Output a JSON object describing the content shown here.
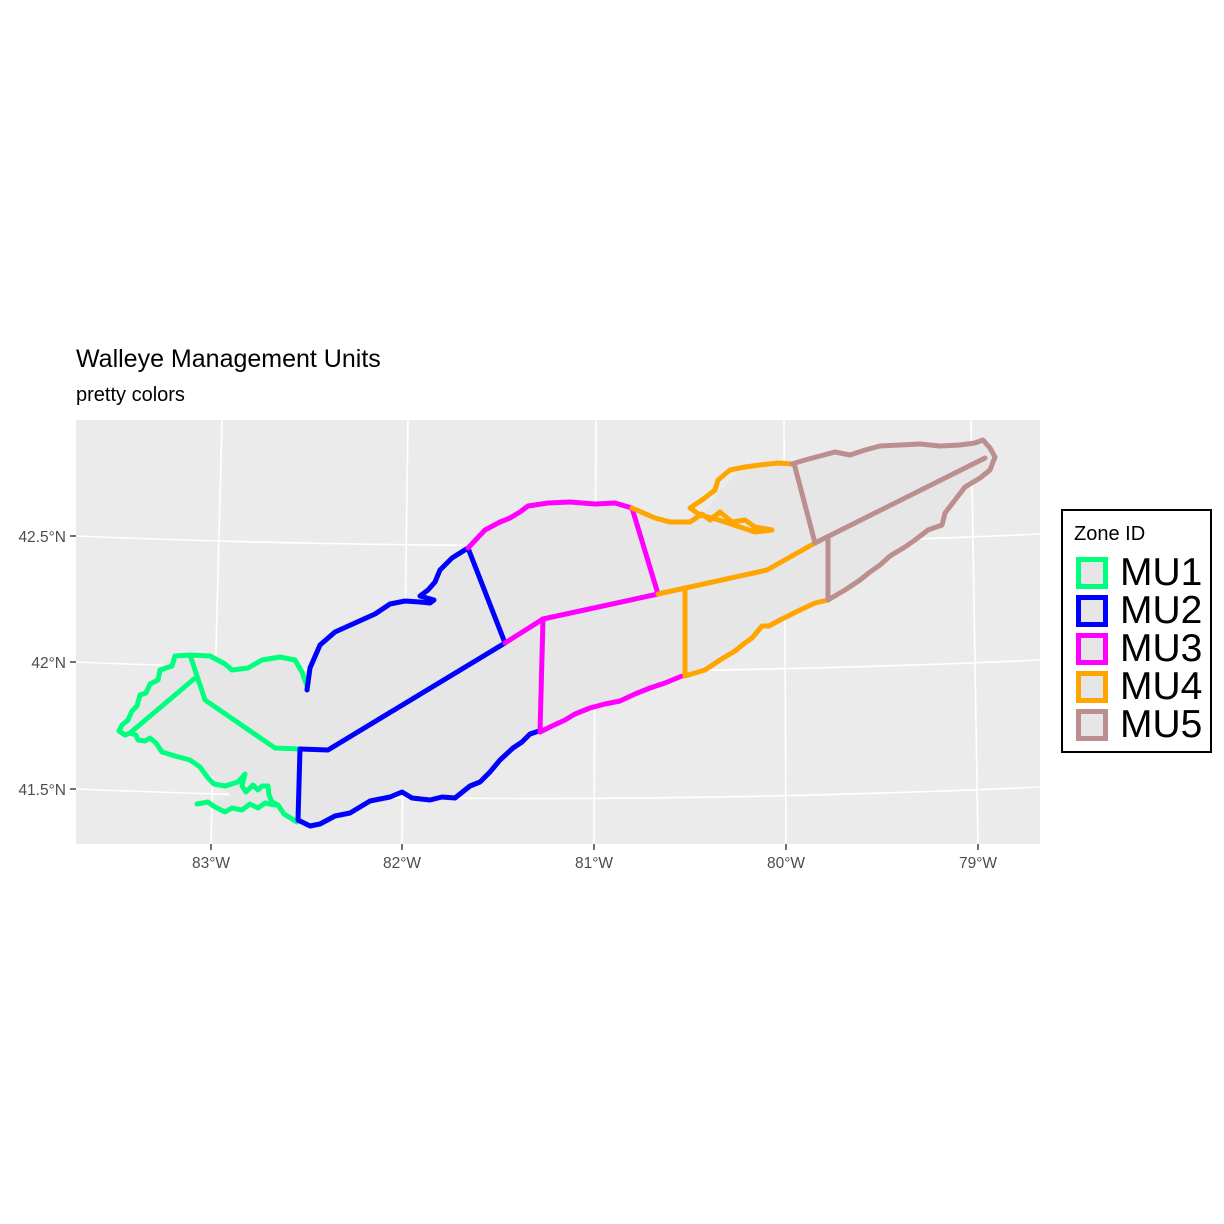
{
  "title": "Walleye Management Units",
  "subtitle": "pretty colors",
  "legend": {
    "title": "Zone ID",
    "items": [
      {
        "label": "MU1",
        "color": "#00ff7f"
      },
      {
        "label": "MU2",
        "color": "#0000ff"
      },
      {
        "label": "MU3",
        "color": "#ff00ff"
      },
      {
        "label": "MU4",
        "color": "#ffa500"
      },
      {
        "label": "MU5",
        "color": "#bc8f8f"
      }
    ]
  },
  "axes": {
    "x_ticks": [
      "83°W",
      "82°W",
      "81°W",
      "80°W",
      "79°W"
    ],
    "y_ticks": [
      "42.5°N",
      "42°N",
      "41.5°N"
    ]
  },
  "colors": {
    "panel_background": "#ebebeb",
    "gridline": "#ffffff",
    "lake_fill": "#e6e6e6"
  }
}
